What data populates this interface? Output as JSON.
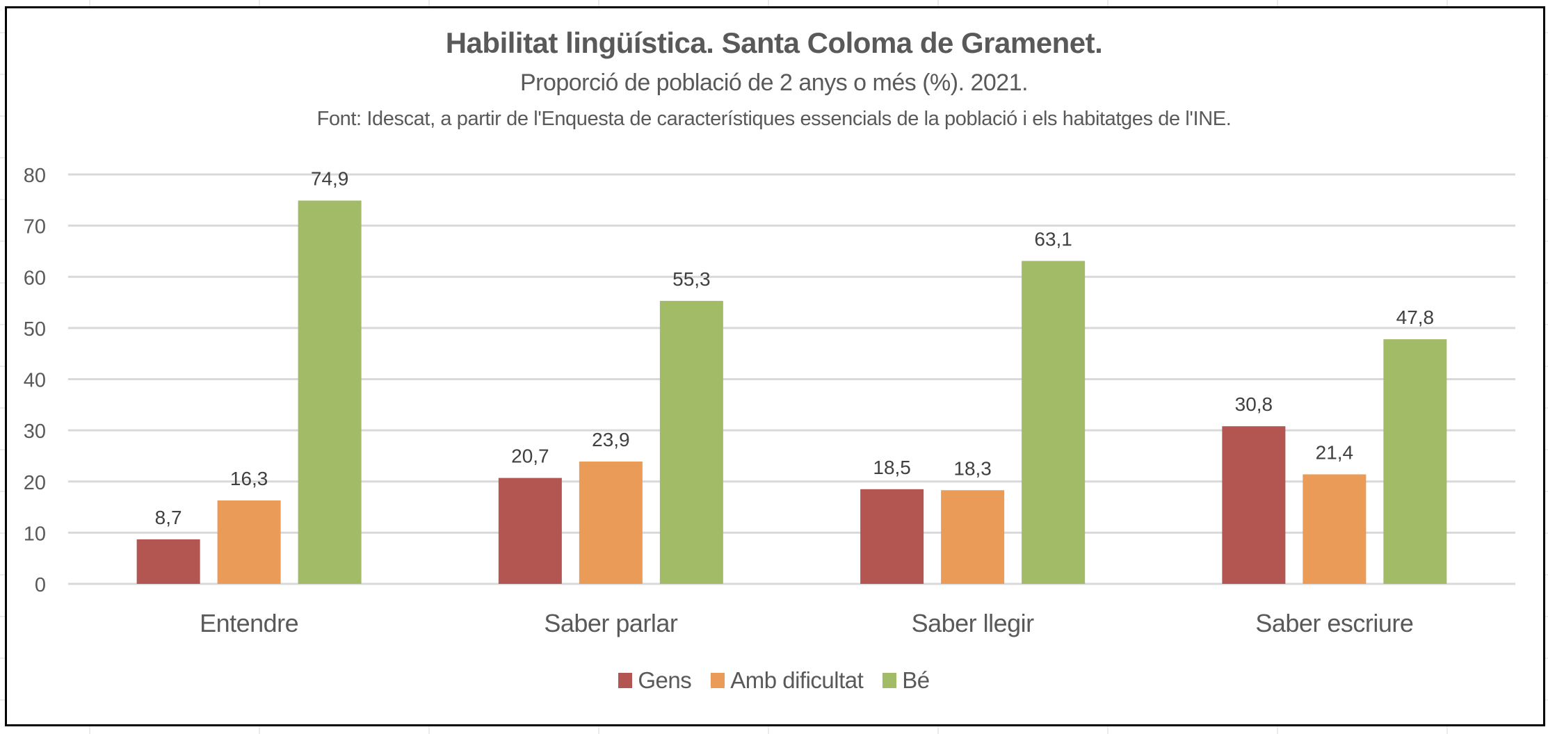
{
  "chart_data": {
    "type": "bar",
    "title": "Habilitat lingüística. Santa Coloma de Gramenet.",
    "subtitle": "Proporció de població de 2 anys o més (%).  2021.",
    "source": "Font: Idescat, a partir de l'Enquesta de característiques essencials de la població i els habitatges de l'INE.",
    "categories": [
      "Entendre",
      "Saber parlar",
      "Saber llegir",
      "Saber escriure"
    ],
    "series": [
      {
        "name": "Gens",
        "color": "#B35651",
        "values": [
          8.7,
          20.7,
          18.5,
          30.8
        ],
        "labels": [
          "8,7",
          "20,7",
          "18,5",
          "30,8"
        ]
      },
      {
        "name": "Amb dificultat",
        "color": "#E99B57",
        "values": [
          16.3,
          23.9,
          18.3,
          21.4
        ],
        "labels": [
          "16,3",
          "23,9",
          "18,3",
          "21,4"
        ]
      },
      {
        "name": "Bé",
        "color": "#A2BB67",
        "values": [
          74.9,
          55.3,
          63.1,
          47.8
        ],
        "labels": [
          "74,9",
          "55,3",
          "63,1",
          "47,8"
        ]
      }
    ],
    "xlabel": "",
    "ylabel": "",
    "ylim": [
      0,
      80
    ],
    "yticks": [
      "0",
      "10",
      "20",
      "30",
      "40",
      "50",
      "60",
      "70",
      "80"
    ],
    "grid": true,
    "legend_position": "bottom"
  }
}
